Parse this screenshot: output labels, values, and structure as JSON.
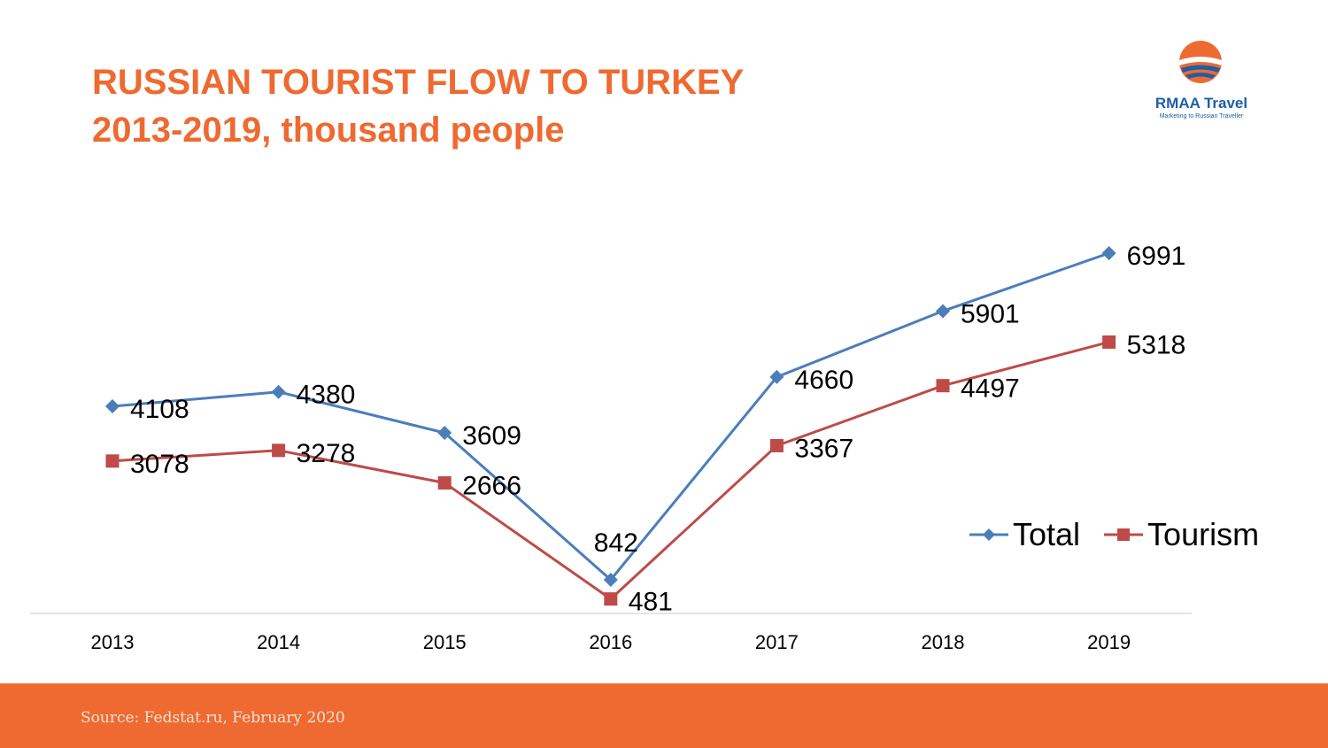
{
  "title": {
    "line1": "RUSSIAN TOURIST FLOW TO TURKEY",
    "line2": "2013-2019, thousand people"
  },
  "logo": {
    "name": "RMAA Travel",
    "tagline": "Marketing to Russian Traveller"
  },
  "footer": {
    "source": "Source: Fedstat.ru, February 2020"
  },
  "colors": {
    "accent": "#ee6a31",
    "total": "#4a7ebb",
    "tourism": "#be4b48"
  },
  "chart_data": {
    "type": "line",
    "title": "RUSSIAN TOURIST FLOW TO TURKEY 2013-2019, thousand people",
    "categories": [
      "2013",
      "2014",
      "2015",
      "2016",
      "2017",
      "2018",
      "2019"
    ],
    "series": [
      {
        "name": "Total",
        "values": [
          4108,
          4380,
          3609,
          842,
          4660,
          5901,
          6991
        ],
        "marker": "diamond",
        "color": "#4a7ebb"
      },
      {
        "name": "Tourism",
        "values": [
          3078,
          3278,
          2666,
          481,
          3367,
          4497,
          5318
        ],
        "marker": "square",
        "color": "#be4b48"
      }
    ],
    "ylim": [
      -400,
      9000
    ],
    "grid": false,
    "data_labels": true,
    "legend": "bottom-right"
  }
}
